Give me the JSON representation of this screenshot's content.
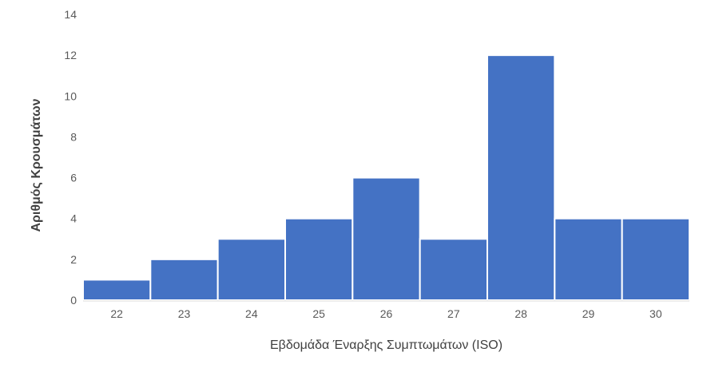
{
  "chart_data": {
    "type": "bar",
    "title": "",
    "xlabel": "Εβδομάδα Έναρξης Συμπτωμάτων (ISO)",
    "ylabel": "Αριθμός Κρουσμάτων",
    "categories": [
      "22",
      "23",
      "24",
      "25",
      "26",
      "27",
      "28",
      "29",
      "30"
    ],
    "values": [
      1,
      2,
      3,
      4,
      6,
      3,
      12,
      4,
      4
    ],
    "ylim": [
      0,
      14
    ],
    "yticks": [
      0,
      2,
      4,
      6,
      8,
      10,
      12,
      14
    ],
    "grid": false,
    "legend": "none",
    "bar_color": "#4472C4",
    "bar_border_color": "#ffffff"
  }
}
